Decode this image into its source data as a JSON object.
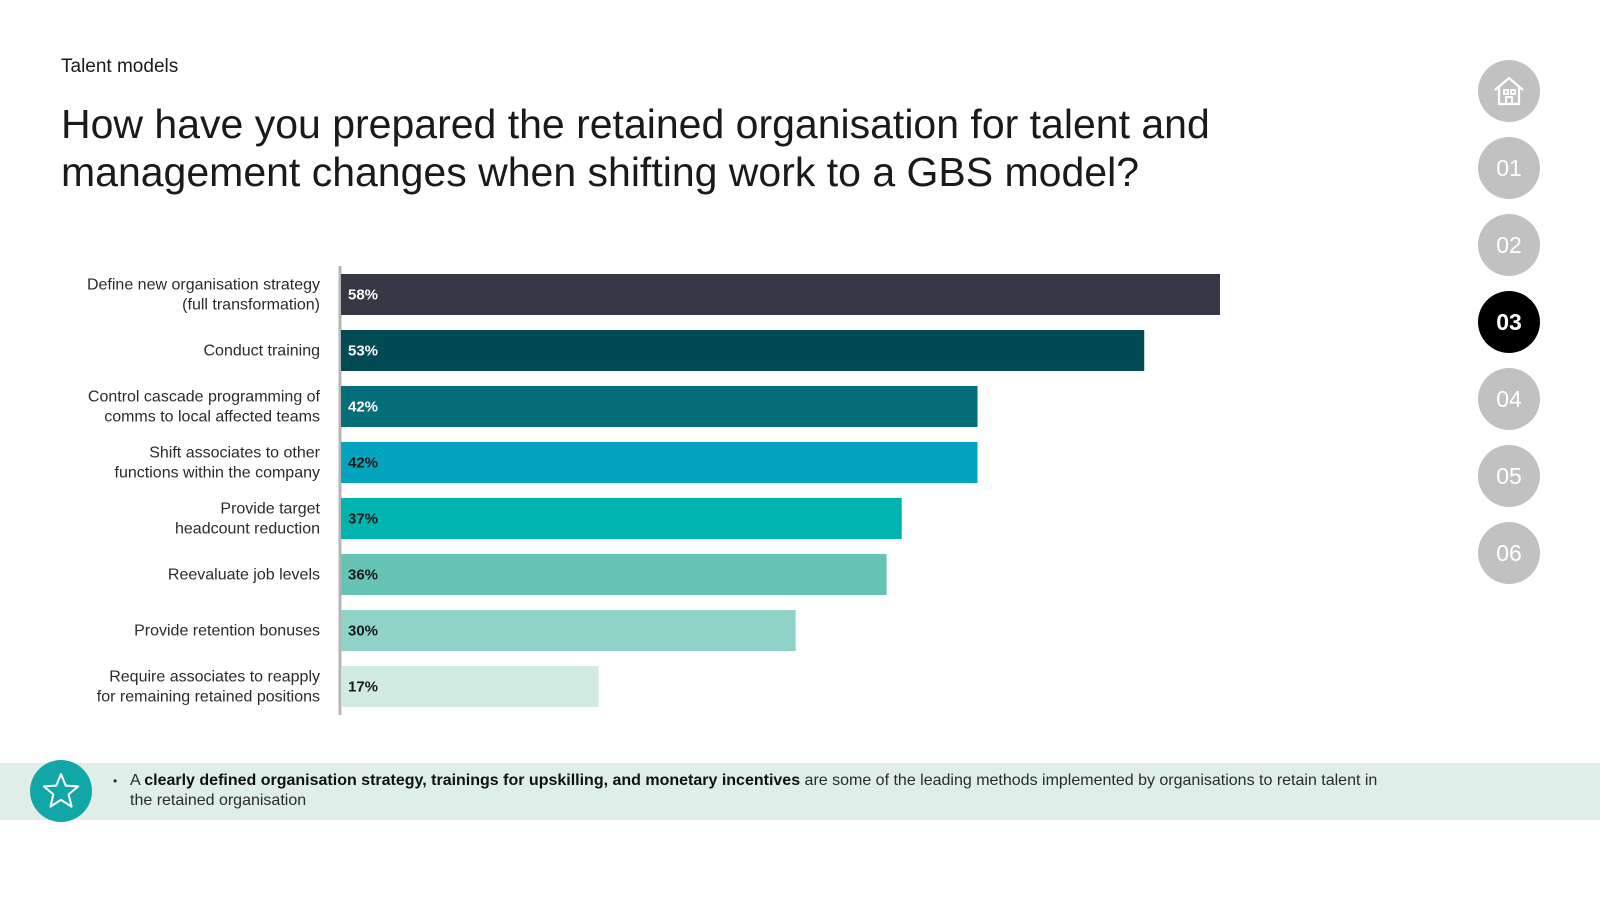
{
  "header": {
    "section": "Talent models",
    "title_line1": "How have you prepared the retained organisation for talent and",
    "title_line2": "management changes when shifting work to a GBS model?"
  },
  "nav": {
    "home_icon": "home-icon",
    "items": [
      {
        "label": "01",
        "active": false
      },
      {
        "label": "02",
        "active": false
      },
      {
        "label": "03",
        "active": true
      },
      {
        "label": "04",
        "active": false
      },
      {
        "label": "05",
        "active": false
      },
      {
        "label": "06",
        "active": false
      }
    ]
  },
  "chart_data": {
    "type": "bar",
    "orientation": "horizontal",
    "categories": [
      [
        "Define new organisation strategy",
        "(full transformation)"
      ],
      [
        "Conduct training"
      ],
      [
        "Control cascade programming of",
        "comms to local affected teams"
      ],
      [
        "Shift associates to other",
        "functions within the company"
      ],
      [
        "Provide target",
        "headcount reduction"
      ],
      [
        "Reevaluate job levels"
      ],
      [
        "Provide retention bonuses"
      ],
      [
        "Require associates to reapply",
        "for remaining retained positions"
      ]
    ],
    "values": [
      58,
      53,
      42,
      42,
      37,
      36,
      30,
      17
    ],
    "value_labels": [
      "58%",
      "53%",
      "42%",
      "42%",
      "37%",
      "36%",
      "30%",
      "17%"
    ],
    "colors": [
      "#363845",
      "#024b55",
      "#066e78",
      "#03a4bd",
      "#00b4b0",
      "#65c4b3",
      "#8fd3c8",
      "#d1ebe2"
    ],
    "label_colors": [
      "#ffffff",
      "#ffffff",
      "#ffffff",
      "#1a1a1a",
      "#1a1a1a",
      "#1a1a1a",
      "#1a1a1a",
      "#1a1a1a"
    ],
    "xlim": [
      0,
      100
    ],
    "grid": false,
    "axis_color": "#b5b5b5"
  },
  "footer": {
    "icon": "star-icon",
    "prefix": "A ",
    "bold": "clearly defined organisation strategy, trainings for upskilling, and monetary incentives",
    "rest": " are some of the leading methods implemented by organisations to retain talent in the retained organisation"
  }
}
